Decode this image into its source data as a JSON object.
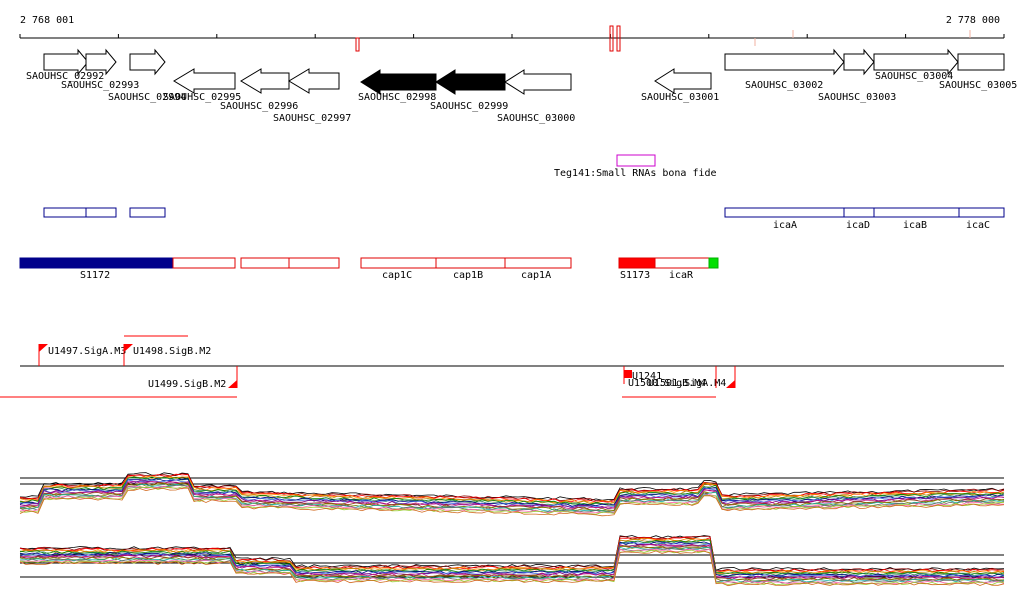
{
  "ruler": {
    "start_label": "2 768 001",
    "end_label": "2 778 000"
  },
  "genes": [
    {
      "id": "g1",
      "label": "SAOUHSC_02992",
      "dir": "+",
      "fill": "white"
    },
    {
      "id": "g2",
      "label": "SAOUHSC_02993",
      "dir": "+",
      "fill": "white"
    },
    {
      "id": "g3",
      "label": "SAOUHSC_02994",
      "dir": "+",
      "fill": "white"
    },
    {
      "id": "g4",
      "label": "SAOUHSC_02995",
      "dir": "-",
      "fill": "white"
    },
    {
      "id": "g5",
      "label": "SAOUHSC_02996",
      "dir": "-",
      "fill": "white"
    },
    {
      "id": "g6",
      "label": "SAOUHSC_02997",
      "dir": "-",
      "fill": "white"
    },
    {
      "id": "g7",
      "label": "SAOUHSC_02998",
      "dir": "-",
      "fill": "black"
    },
    {
      "id": "g8",
      "label": "SAOUHSC_02999",
      "dir": "-",
      "fill": "black"
    },
    {
      "id": "g9",
      "label": "SAOUHSC_03000",
      "dir": "-",
      "fill": "white"
    },
    {
      "id": "g10",
      "label": "SAOUHSC_03001",
      "dir": "-",
      "fill": "white"
    },
    {
      "id": "g11",
      "label": "SAOUHSC_03002",
      "dir": "+",
      "fill": "white"
    },
    {
      "id": "g12",
      "label": "SAOUHSC_03003",
      "dir": "+",
      "fill": "white"
    },
    {
      "id": "g13",
      "label": "SAOUHSC_03004",
      "dir": "+",
      "fill": "white"
    },
    {
      "id": "g14",
      "label": "SAOUHSC_03005",
      "dir": "+",
      "fill": "white"
    }
  ],
  "srna": {
    "label": "Teg141:Small RNAs bona fide",
    "color": "#cc00cc"
  },
  "operon_boxes": {
    "labels": [
      "icaA",
      "icaD",
      "icaB",
      "icaC"
    ],
    "color": "#00008b"
  },
  "transcripts": {
    "labels": [
      "S1172",
      "cap1C",
      "cap1B",
      "cap1A",
      "S1173",
      "icaR"
    ],
    "colors": {
      "outline": "#e00000",
      "filled": "#00008b",
      "red": "#ff0000",
      "green": "#00e000"
    }
  },
  "promoters": {
    "labels": [
      "U1497.SigA.M3",
      "U1498.SigB.M2",
      "U1499.SigB.M2",
      "U1241",
      "U1500.SigB.M4",
      "U1501.SigA.M4"
    ],
    "color": "#ff0000"
  },
  "expression": {
    "series_colors": [
      "#000000",
      "#8b0000",
      "#ff0000",
      "#ff8c00",
      "#b8860b",
      "#008000",
      "#2e8b57",
      "#00008b",
      "#4169e1",
      "#800080",
      "#c71585",
      "#8b4513",
      "#808000",
      "#20b2aa",
      "#696969",
      "#ff69b4",
      "#9acd32",
      "#d2691e"
    ]
  }
}
